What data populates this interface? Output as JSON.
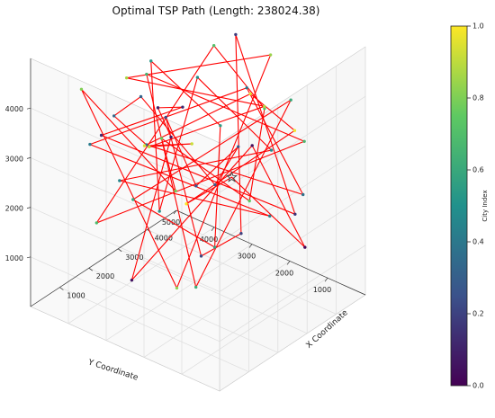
{
  "chart_data": {
    "type": "line",
    "projection": "3d",
    "title": "Optimal TSP Path (Length: 238024.38)",
    "xlabel": "X Coordinate",
    "ylabel": "Y Coordinate",
    "zlabel": "",
    "xlim": [
      0,
      5000
    ],
    "ylim": [
      0,
      5000
    ],
    "zlim": [
      0,
      5000
    ],
    "x_ticks": [
      "1000",
      "2000",
      "3000",
      "4000"
    ],
    "y_ticks": [
      "1000",
      "2000",
      "3000",
      "4000",
      "5000"
    ],
    "z_ticks": [
      "1000",
      "2000",
      "3000",
      "4000"
    ],
    "path_color": "#ff0000",
    "start_marker": "star",
    "start_color": "#444444",
    "colormap": "viridis",
    "colorbar": {
      "label": "City Index",
      "ticks": [
        "0.0",
        "0.2",
        "0.4",
        "0.6",
        "0.8",
        "1.0"
      ]
    },
    "route": [
      [
        2180,
        1360,
        3000
      ],
      [
        4560,
        1260,
        700
      ],
      [
        4060,
        2270,
        2600
      ],
      [
        1020,
        3110,
        780
      ],
      [
        3830,
        4240,
        2190
      ],
      [
        620,
        2110,
        4750
      ],
      [
        2750,
        3100,
        3600
      ],
      [
        520,
        3530,
        3750
      ],
      [
        3910,
        1020,
        1700
      ],
      [
        4350,
        2930,
        4500
      ],
      [
        1490,
        580,
        2400
      ],
      [
        3050,
        2840,
        570
      ],
      [
        1280,
        2410,
        4200
      ],
      [
        4770,
        4300,
        820
      ],
      [
        1910,
        980,
        3850
      ],
      [
        3990,
        3200,
        1520
      ],
      [
        1760,
        3440,
        4080
      ],
      [
        2420,
        4660,
        3020
      ],
      [
        420,
        2260,
        4030
      ],
      [
        3860,
        770,
        2200
      ],
      [
        2760,
        1410,
        4560
      ],
      [
        1050,
        4240,
        3120
      ],
      [
        4870,
        2430,
        810
      ],
      [
        950,
        3380,
        2720
      ],
      [
        3060,
        990,
        3330
      ],
      [
        4400,
        3980,
        3260
      ],
      [
        1970,
        3110,
        1800
      ],
      [
        3480,
        4500,
        3770
      ],
      [
        700,
        520,
        4900
      ],
      [
        2620,
        2150,
        1150
      ],
      [
        3150,
        4720,
        1030
      ],
      [
        4440,
        1540,
        3620
      ],
      [
        860,
        1290,
        1320
      ],
      [
        2500,
        3860,
        4100
      ],
      [
        4020,
        860,
        3180
      ],
      [
        1200,
        4180,
        1500
      ],
      [
        3460,
        2820,
        4660
      ],
      [
        2150,
        470,
        4700
      ],
      [
        4460,
        2650,
        1200
      ],
      [
        1380,
        2600,
        3670
      ],
      [
        3390,
        3780,
        1430
      ],
      [
        640,
        4150,
        4420
      ],
      [
        1800,
        2520,
        520
      ],
      [
        4250,
        1930,
        4470
      ],
      [
        2540,
        4420,
        3820
      ],
      [
        3260,
        1330,
        4020
      ],
      [
        2900,
        4100,
        2400
      ],
      [
        1280,
        1720,
        3900
      ],
      [
        2040,
        3560,
        2940
      ],
      [
        3700,
        2040,
        3860
      ],
      [
        3300,
        560,
        3780
      ],
      [
        4110,
        4050,
        800
      ]
    ]
  }
}
